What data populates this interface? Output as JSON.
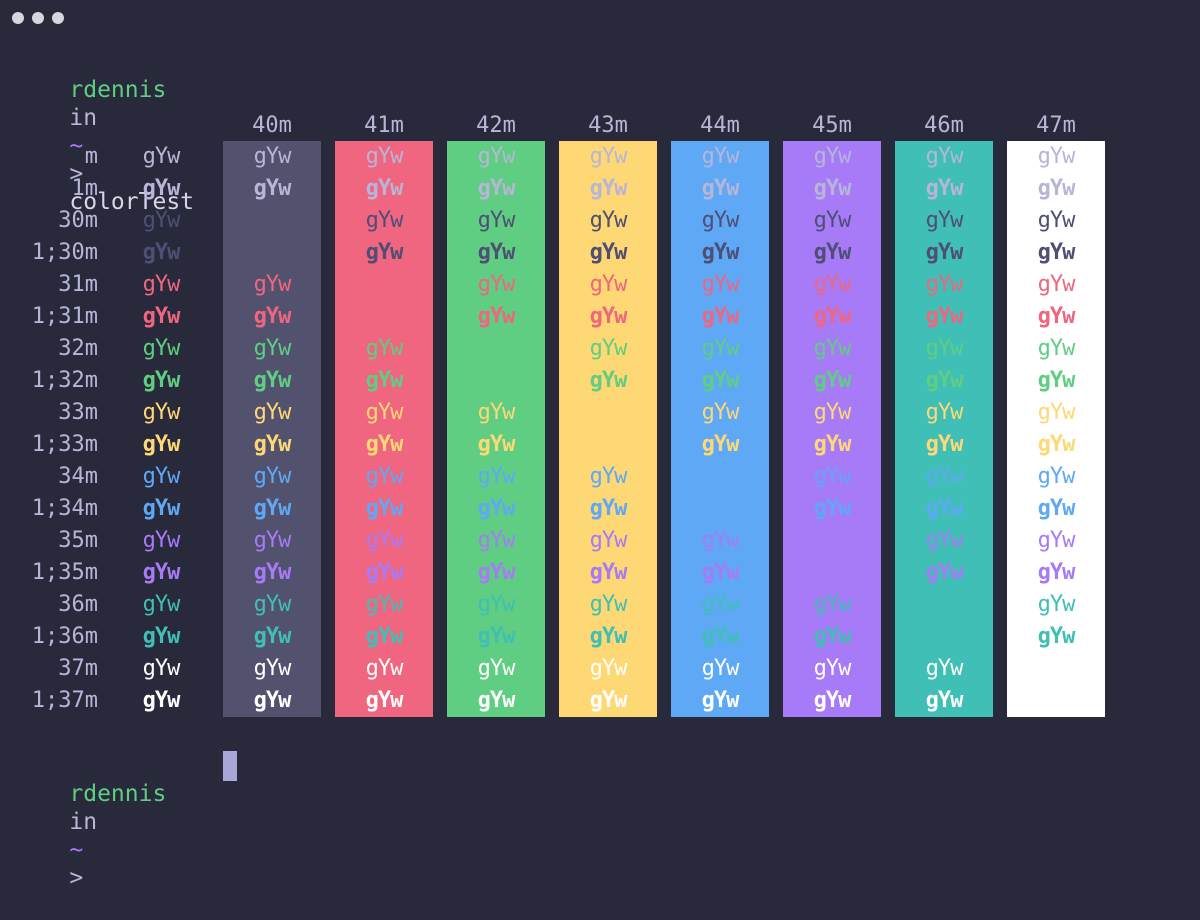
{
  "window": {
    "controls": [
      "close",
      "minimize",
      "zoom"
    ]
  },
  "prompt": {
    "user": "rdennis",
    "in_word": "in",
    "dir": "~",
    "arrow": ">",
    "command": "colorTest"
  },
  "columns": [
    "40m",
    "41m",
    "42m",
    "43m",
    "44m",
    "45m",
    "46m",
    "47m"
  ],
  "rows": [
    "m",
    "1m",
    "30m",
    "1;30m",
    "31m",
    "1;31m",
    "32m",
    "1;32m",
    "33m",
    "1;33m",
    "34m",
    "1;34m",
    "35m",
    "1;35m",
    "36m",
    "1;36m",
    "37m",
    "1;37m"
  ],
  "sample_text": "gYw",
  "colors": {
    "terminal_bg": "#282a3b",
    "default_fg": "#b7b5d8",
    "prompt_user": "#5fce82",
    "prompt_in": "#b7b5d8",
    "prompt_dir": "#a77af7",
    "fg": [
      "#4f4f75",
      "#f0657f",
      "#5fce82",
      "#fed874",
      "#5fa8f6",
      "#a77af7",
      "#3fbfb5",
      "#ffffff"
    ],
    "bg": [
      "#52526e",
      "#f0657f",
      "#5fce82",
      "#fed874",
      "#5fa8f6",
      "#a77af7",
      "#3fbfb5",
      "#ffffff"
    ]
  }
}
